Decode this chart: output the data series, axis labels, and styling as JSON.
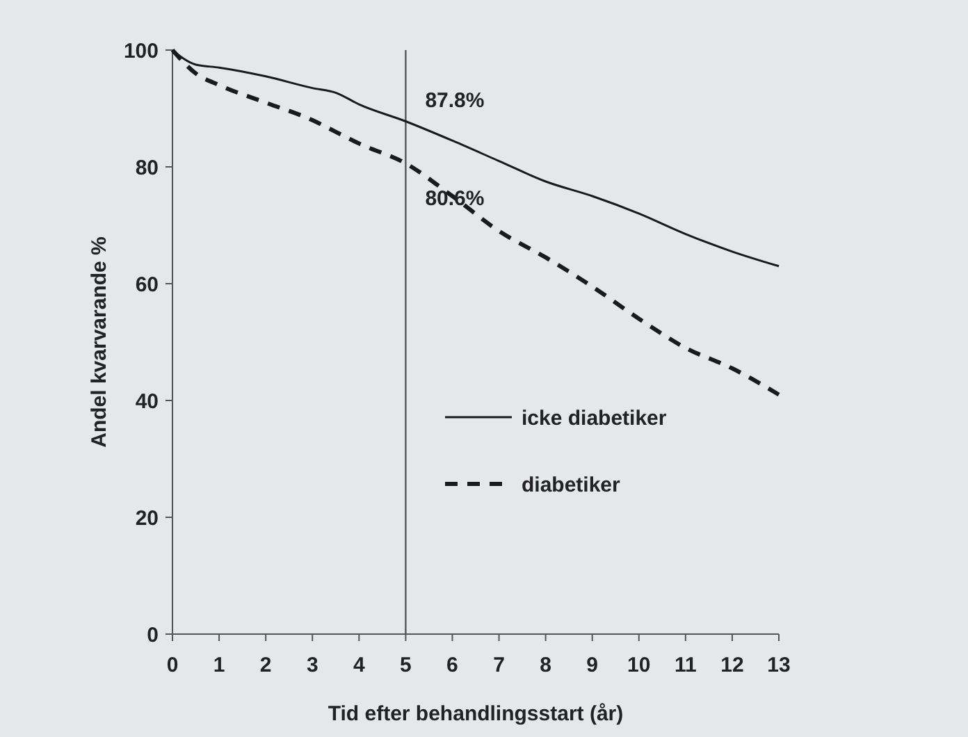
{
  "chart_data": {
    "type": "line",
    "xlabel": "Tid efter behandlingsstart (år)",
    "ylabel": "Andel kvarvarande %",
    "xlim": [
      0,
      13
    ],
    "xticks": [
      0,
      1,
      2,
      3,
      4,
      5,
      6,
      7,
      8,
      9,
      10,
      11,
      12,
      13
    ],
    "ylim": [
      0,
      100
    ],
    "yticks": [
      0,
      20,
      40,
      60,
      80,
      100
    ],
    "x": [
      0,
      0.5,
      1,
      2,
      3,
      3.5,
      4,
      5,
      6,
      7,
      8,
      9,
      10,
      11,
      12,
      13
    ],
    "series": [
      {
        "name": "icke diabetiker",
        "color": "#1a1a1a",
        "line_style": "solid",
        "values": [
          100,
          97.5,
          97,
          95.5,
          93.5,
          92.7,
          90.7,
          87.8,
          84.5,
          81,
          77.5,
          75,
          72,
          68.5,
          65.5,
          63
        ]
      },
      {
        "name": "diabetiker",
        "color": "#1a1a1a",
        "line_style": "dashed",
        "values": [
          100,
          96,
          94,
          91,
          88,
          86,
          84,
          80.6,
          75,
          69,
          64.5,
          59.5,
          54,
          49,
          45.5,
          41
        ]
      }
    ],
    "ref_lines": [
      {
        "axis": "x",
        "value": 5,
        "color": "#555555"
      }
    ],
    "annotations": [
      {
        "text": "87.8%",
        "x": 5,
        "y": 87.8
      },
      {
        "text": "80.6%",
        "x": 5,
        "y": 80.6
      }
    ],
    "legend": "right",
    "grid": false
  }
}
